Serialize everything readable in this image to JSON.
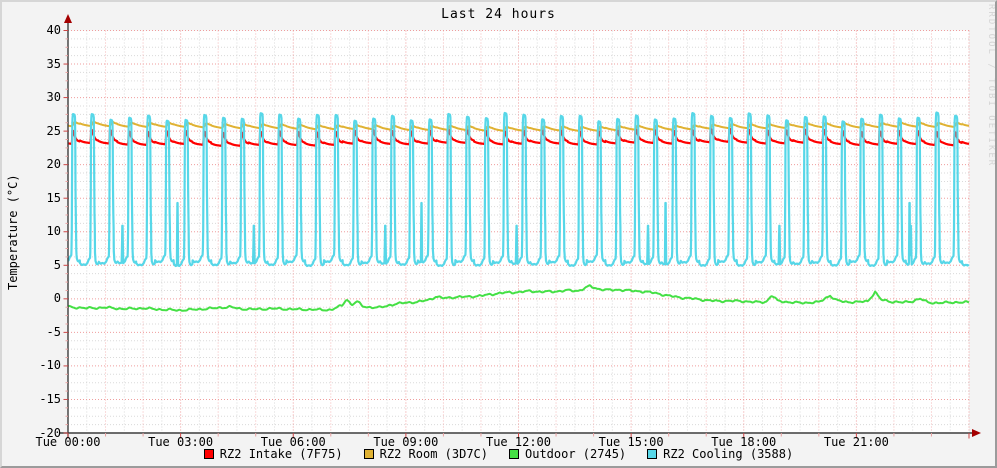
{
  "watermark": "RRDTOOL / TOBI OETIKER",
  "colors": {
    "background": "#f3f3f3",
    "plot_background": "#ffffff",
    "grid_minor": "#dadada",
    "grid_hour": "#f5b9b9",
    "grid_major": "#ef9d9d",
    "axis": "#3c3c3c",
    "arrow": "#a40000",
    "tick_major": "#cc4444",
    "tick_minor": "#e8a0a0",
    "text": "#000000",
    "watermark_text": "#d4d4d4"
  },
  "chart_data": {
    "type": "line",
    "title": "Last 24 hours",
    "ylabel": "Temperature (°C)",
    "ylim": [
      -20,
      40
    ],
    "y_major_step": 5,
    "y_minor_step": 1.25,
    "x_range_hours": 24,
    "x_minor_step_minutes": 30,
    "x_hour_step_minutes": 60,
    "x_label_step_hours": 3,
    "grid": true,
    "legend_position": "bottom-center",
    "x_ticks": [
      {
        "hour": 0,
        "label": "Tue 00:00"
      },
      {
        "hour": 3,
        "label": "Tue 03:00"
      },
      {
        "hour": 6,
        "label": "Tue 06:00"
      },
      {
        "hour": 9,
        "label": "Tue 09:00"
      },
      {
        "hour": 12,
        "label": "Tue 12:00"
      },
      {
        "hour": 15,
        "label": "Tue 15:00"
      },
      {
        "hour": 18,
        "label": "Tue 18:00"
      },
      {
        "hour": 21,
        "label": "Tue 21:00"
      }
    ],
    "series": [
      {
        "name": "RZ2 Intake (7F75)",
        "color": "#ff0000",
        "width": 2.2,
        "kind": "cyclic",
        "period_minutes": 30,
        "phase_minutes": -11,
        "sample_step_minutes": 0.5,
        "jitter": 0.15,
        "daily_wave": {
          "amplitude": 0.12,
          "phase_hour": 16
        },
        "cycle_keypoints": [
          [
            0,
            23.45
          ],
          [
            4,
            23.3
          ],
          [
            8,
            23.2
          ],
          [
            12,
            23.15
          ],
          [
            16,
            23.1
          ],
          [
            17.3,
            23.05
          ],
          [
            17.9,
            25.1
          ],
          [
            19.5,
            25.0
          ],
          [
            20.5,
            24.7
          ],
          [
            21.5,
            24.35
          ],
          [
            23,
            24.0
          ],
          [
            24.5,
            23.75
          ],
          [
            26,
            23.6
          ],
          [
            28,
            23.5
          ],
          [
            30,
            23.45
          ]
        ]
      },
      {
        "name": "RZ2 Room (3D7C)",
        "color": "#e0b233",
        "width": 2,
        "kind": "cyclic",
        "period_minutes": 30,
        "phase_minutes": -11,
        "sample_step_minutes": 0.5,
        "jitter": 0.06,
        "daily_wave": {
          "amplitude": 0.3,
          "phase_hour": 0
        },
        "cycle_keypoints": [
          [
            0,
            25.75
          ],
          [
            5,
            25.6
          ],
          [
            10,
            25.5
          ],
          [
            15,
            25.42
          ],
          [
            17.5,
            25.4
          ],
          [
            19,
            25.6
          ],
          [
            21,
            25.95
          ],
          [
            22.5,
            26.05
          ],
          [
            24,
            25.95
          ],
          [
            26,
            25.85
          ],
          [
            28,
            25.8
          ],
          [
            30,
            25.75
          ]
        ]
      },
      {
        "name": "Outdoor (2745)",
        "color": "#45e045",
        "width": 2,
        "kind": "sampled",
        "sample_step_minutes": 2,
        "noise_amplitude": 0.09,
        "points": [
          [
            0,
            -1.2
          ],
          [
            0.5,
            -1.4
          ],
          [
            1,
            -1.3
          ],
          [
            1.5,
            -1.5
          ],
          [
            2,
            -1.4
          ],
          [
            2.5,
            -1.6
          ],
          [
            3,
            -1.7
          ],
          [
            3.5,
            -1.55
          ],
          [
            4,
            -1.35
          ],
          [
            4.3,
            -1.2
          ],
          [
            4.6,
            -1.5
          ],
          [
            5,
            -1.55
          ],
          [
            5.5,
            -1.45
          ],
          [
            6,
            -1.55
          ],
          [
            6.5,
            -1.6
          ],
          [
            7,
            -1.65
          ],
          [
            7.3,
            -1.0
          ],
          [
            7.42,
            0.0
          ],
          [
            7.55,
            -0.9
          ],
          [
            7.7,
            -0.4
          ],
          [
            7.85,
            -1.1
          ],
          [
            8,
            -1.25
          ],
          [
            8.3,
            -1.3
          ],
          [
            8.6,
            -0.9
          ],
          [
            9,
            -0.55
          ],
          [
            9.3,
            -0.5
          ],
          [
            9.6,
            -0.15
          ],
          [
            9.8,
            0.3
          ],
          [
            10,
            0.1
          ],
          [
            10.3,
            0.25
          ],
          [
            10.6,
            0.3
          ],
          [
            11,
            0.45
          ],
          [
            11.3,
            0.7
          ],
          [
            11.6,
            0.9
          ],
          [
            12,
            1.0
          ],
          [
            12.3,
            1.15
          ],
          [
            12.6,
            1.05
          ],
          [
            13,
            1.1
          ],
          [
            13.3,
            1.25
          ],
          [
            13.6,
            1.2
          ],
          [
            13.9,
            1.9
          ],
          [
            14.1,
            1.5
          ],
          [
            14.4,
            1.3
          ],
          [
            14.7,
            1.35
          ],
          [
            15,
            1.2
          ],
          [
            15.3,
            1.1
          ],
          [
            15.6,
            0.9
          ],
          [
            16,
            0.45
          ],
          [
            16.3,
            0.2
          ],
          [
            16.6,
            0.05
          ],
          [
            17,
            -0.2
          ],
          [
            17.3,
            -0.35
          ],
          [
            17.6,
            -0.3
          ],
          [
            18,
            -0.35
          ],
          [
            18.3,
            -0.5
          ],
          [
            18.6,
            -0.45
          ],
          [
            18.75,
            0.55
          ],
          [
            18.9,
            -0.3
          ],
          [
            19.2,
            -0.5
          ],
          [
            19.5,
            -0.6
          ],
          [
            19.8,
            -0.55
          ],
          [
            20,
            -0.5
          ],
          [
            20.3,
            0.5
          ],
          [
            20.45,
            -0.2
          ],
          [
            20.7,
            -0.45
          ],
          [
            21,
            -0.5
          ],
          [
            21.3,
            -0.35
          ],
          [
            21.5,
            1.0
          ],
          [
            21.65,
            -0.1
          ],
          [
            21.9,
            -0.4
          ],
          [
            22.2,
            -0.55
          ],
          [
            22.5,
            -0.35
          ],
          [
            22.7,
            0.0
          ],
          [
            22.9,
            -0.5
          ],
          [
            23.2,
            -0.65
          ],
          [
            23.5,
            -0.5
          ],
          [
            23.8,
            -0.55
          ],
          [
            24,
            -0.5
          ]
        ]
      },
      {
        "name": "RZ2 Cooling (3588)",
        "color": "#57d7e8",
        "width": 2.2,
        "kind": "cyclic",
        "period_minutes": 30,
        "phase_minutes": -11,
        "sample_step_minutes": 0.4,
        "peak_jitter": 0.45,
        "valley_jitter": 0.3,
        "minor_peaks": [
          {
            "every": 7,
            "offset": 3,
            "height": 12,
            "center": 8,
            "half_width": 1.2
          },
          {
            "every": 13,
            "offset": 6,
            "height": 16.5,
            "center": 6,
            "half_width": 1.0
          }
        ],
        "cycle_keypoints": [
          [
            0,
            5.5
          ],
          [
            3,
            5.2
          ],
          [
            6,
            5.3
          ],
          [
            9,
            5.2
          ],
          [
            12,
            5.5
          ],
          [
            14,
            6.0
          ],
          [
            16.5,
            6.3
          ],
          [
            17.2,
            12
          ],
          [
            17.8,
            25.5
          ],
          [
            18.4,
            26.9
          ],
          [
            19,
            27.1
          ],
          [
            21.5,
            27.0
          ],
          [
            22.3,
            26.5
          ],
          [
            22.8,
            20
          ],
          [
            23.2,
            13
          ],
          [
            23.6,
            12.5
          ],
          [
            24.2,
            7
          ],
          [
            25,
            5.8
          ],
          [
            26.5,
            5.4
          ],
          [
            28,
            5.3
          ],
          [
            30,
            5.5
          ]
        ]
      }
    ]
  }
}
